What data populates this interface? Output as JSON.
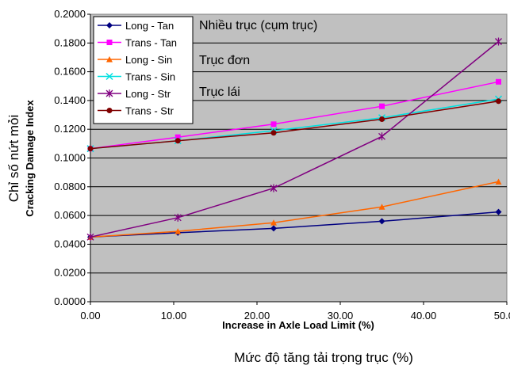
{
  "chart_data": {
    "type": "line",
    "xlabel": "Increase in Axle Load Limit (%)",
    "xlabel_vn": "Mức độ tăng tải trọng trục (%)",
    "ylabel_vn": "Chỉ số nứt mỏi",
    "ylabel": "Cracking Damage Index",
    "xlim": [
      0,
      50
    ],
    "ylim": [
      0,
      0.2
    ],
    "x_ticks": [
      "0.00",
      "10.00",
      "20.00",
      "30.00",
      "40.00",
      "50.00"
    ],
    "y_ticks": [
      "0.0000",
      "0.0200",
      "0.0400",
      "0.0600",
      "0.0800",
      "0.1000",
      "0.1200",
      "0.1400",
      "0.1600",
      "0.1800",
      "0.2000"
    ],
    "grid": "horizontal",
    "legend_position": "top-left",
    "annotations": [
      "Nhiều trục (cụm trục)",
      "Trục đơn",
      "Trục lái"
    ],
    "x": [
      0,
      10.5,
      22,
      35,
      49
    ],
    "series": [
      {
        "name": "Long - Tan",
        "color": "#000080",
        "marker": "diamond",
        "values": [
          0.045,
          0.048,
          0.051,
          0.056,
          0.0625
        ]
      },
      {
        "name": "Trans - Tan",
        "color": "#ff00ff",
        "marker": "square",
        "values": [
          0.1065,
          0.1145,
          0.1235,
          0.136,
          0.153
        ]
      },
      {
        "name": "Long - Sin",
        "color": "#ff6600",
        "marker": "triangle",
        "values": [
          0.045,
          0.049,
          0.055,
          0.066,
          0.0835
        ]
      },
      {
        "name": "Trans - Sin",
        "color": "#00e0e0",
        "marker": "x",
        "values": [
          0.1065,
          0.112,
          0.119,
          0.128,
          0.141
        ]
      },
      {
        "name": "Long - Str",
        "color": "#800080",
        "marker": "star",
        "values": [
          0.045,
          0.0585,
          0.079,
          0.115,
          0.181
        ]
      },
      {
        "name": "Trans - Str",
        "color": "#800000",
        "marker": "circle",
        "values": [
          0.1065,
          0.112,
          0.1175,
          0.127,
          0.1395
        ]
      }
    ]
  }
}
